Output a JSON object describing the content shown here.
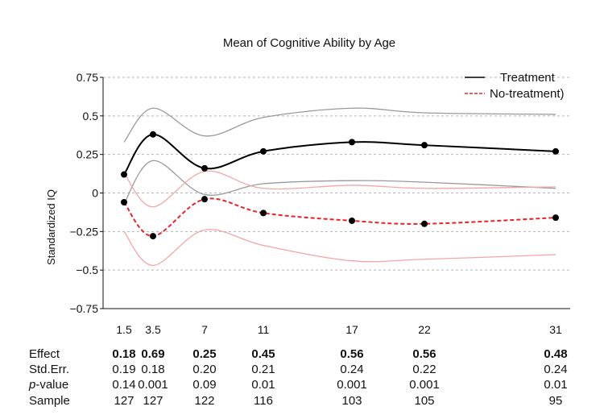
{
  "chart_data": {
    "type": "line",
    "title": "Mean of Cognitive Ability by Age",
    "ylabel": "Standardized IQ",
    "xlabel": "",
    "ylim": [
      -0.75,
      0.75
    ],
    "yticks": [
      {
        "value": 0.75,
        "label": "0.75"
      },
      {
        "value": 0.5,
        "label": "0.5"
      },
      {
        "value": 0.25,
        "label": "0.25"
      },
      {
        "value": 0,
        "label": "0"
      },
      {
        "value": -0.25,
        "label": "−0.25"
      },
      {
        "value": -0.5,
        "label": "−0.5"
      },
      {
        "value": -0.75,
        "label": "−0.75"
      }
    ],
    "grid": true,
    "legend_position": "top-right",
    "x": [
      1.5,
      3.5,
      7,
      11,
      17,
      22,
      31
    ],
    "x_labels": [
      "1.5",
      "3.5",
      "7",
      "11",
      "17",
      "22",
      "31"
    ],
    "series": [
      {
        "name": "Treatment",
        "color": "#000000",
        "dash": false,
        "values": [
          0.12,
          0.38,
          0.16,
          0.27,
          0.33,
          0.31,
          0.27
        ],
        "upper": [
          0.33,
          0.55,
          0.37,
          0.49,
          0.55,
          0.52,
          0.51
        ],
        "lower": [
          -0.07,
          0.21,
          -0.01,
          0.06,
          0.08,
          0.07,
          0.03
        ]
      },
      {
        "name": "No-treatment)",
        "color": "#e8242a",
        "dash": true,
        "values": [
          -0.06,
          -0.28,
          -0.04,
          -0.13,
          -0.18,
          -0.2,
          -0.16
        ],
        "upper": [
          0.13,
          -0.09,
          0.14,
          0.03,
          0.05,
          0.03,
          0.04
        ],
        "lower": [
          -0.25,
          -0.47,
          -0.24,
          -0.34,
          -0.44,
          -0.43,
          -0.4
        ]
      }
    ],
    "ci_colors": {
      "treatment": "#9a9a9a",
      "no_treatment": "#f3a6a6"
    }
  },
  "stats": {
    "rows": [
      {
        "label_prefix": "",
        "label_main": "Effect",
        "bold": true,
        "values": [
          "0.18",
          "0.69",
          "0.25",
          "0.45",
          "0.56",
          "0.56",
          "0.48"
        ]
      },
      {
        "label_prefix": "",
        "label_main": "Std.Err.",
        "bold": false,
        "values": [
          "0.19",
          "0.18",
          "0.20",
          "0.21",
          "0.24",
          "0.22",
          "0.24"
        ]
      },
      {
        "label_prefix": "p",
        "label_main": "-value",
        "bold": false,
        "values": [
          "0.14",
          "0.001",
          "0.09",
          "0.01",
          "0.001",
          "0.001",
          "0.01"
        ]
      },
      {
        "label_prefix": "",
        "label_main": "Sample",
        "bold": false,
        "values": [
          "127",
          "127",
          "122",
          "116",
          "103",
          "105",
          "95"
        ]
      }
    ]
  }
}
